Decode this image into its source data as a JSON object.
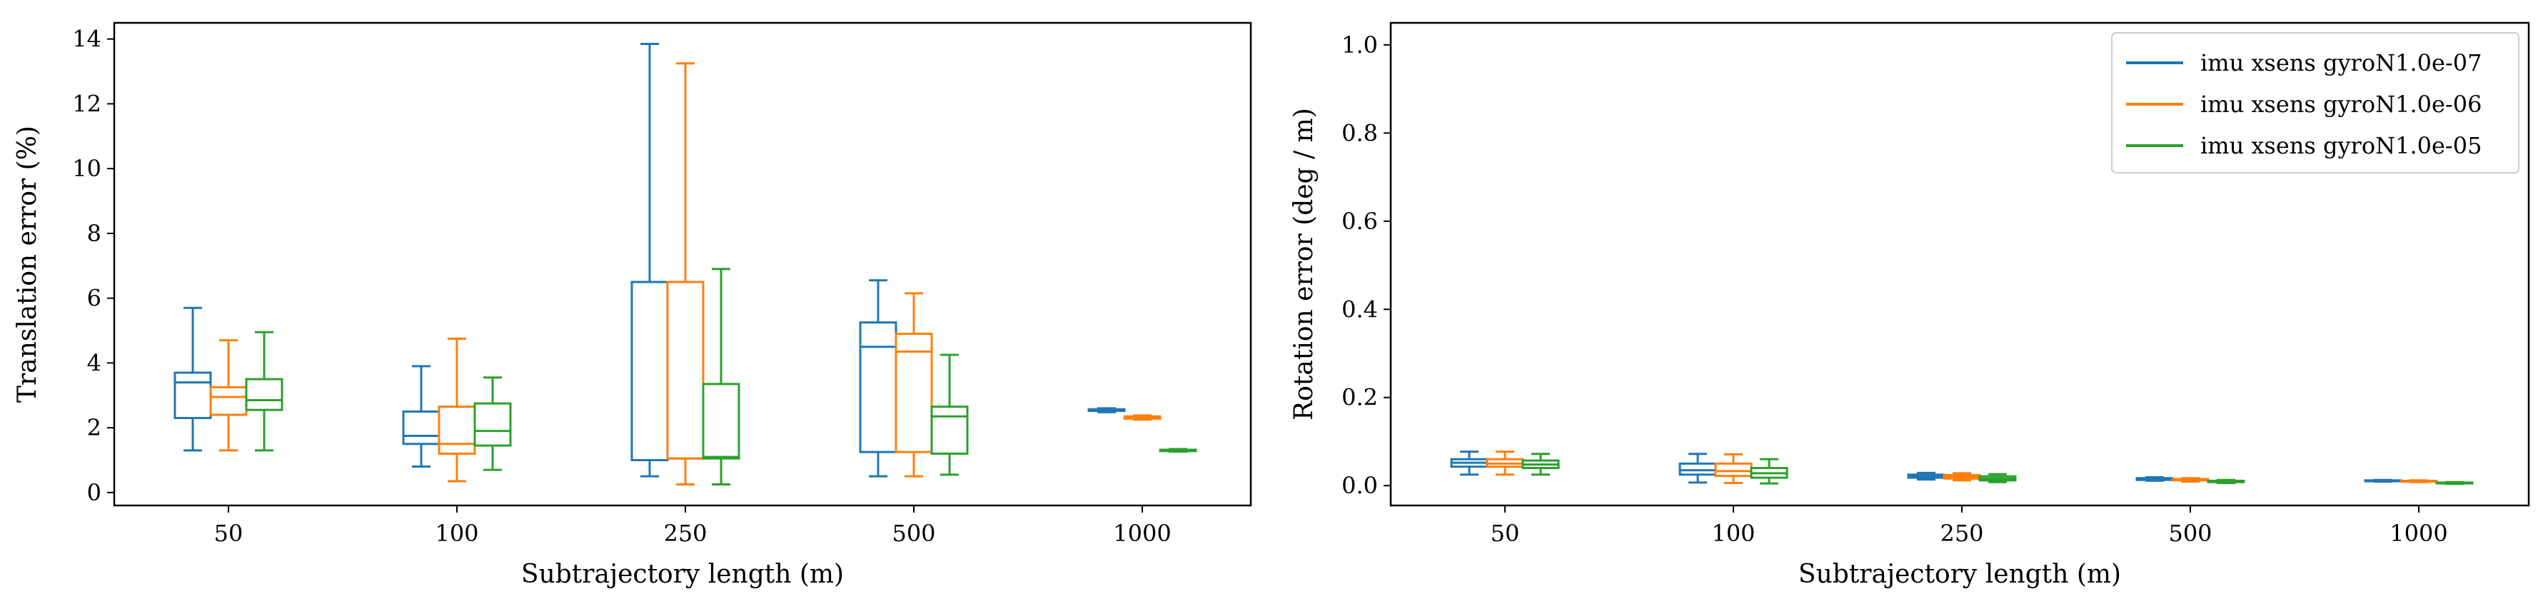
{
  "chart_data": [
    {
      "type": "box",
      "title": "",
      "xlabel": "Subtrajectory length (m)",
      "ylabel": "Translation error (%)",
      "categories": [
        "50",
        "100",
        "250",
        "500",
        "1000"
      ],
      "ylim": [
        -0.4,
        14.5
      ],
      "yticks": [
        0,
        2,
        4,
        6,
        8,
        10,
        12,
        14
      ],
      "ytick_labels": [
        "0",
        "2",
        "4",
        "6",
        "8",
        "10",
        "12",
        "14"
      ],
      "grid": false,
      "legend": false,
      "series": [
        {
          "name": "imu xsens gyroN1.0e-07",
          "color": "#1f77b4",
          "boxes": [
            {
              "min": 1.3,
              "q1": 2.3,
              "median": 3.4,
              "q3": 3.7,
              "max": 5.7
            },
            {
              "min": 0.8,
              "q1": 1.5,
              "median": 1.75,
              "q3": 2.5,
              "max": 3.9
            },
            {
              "min": 0.5,
              "q1": 1.0,
              "median": 6.5,
              "q3": 6.5,
              "max": 13.85
            },
            {
              "min": 0.5,
              "q1": 1.25,
              "median": 4.5,
              "q3": 5.25,
              "max": 6.55
            },
            {
              "min": 2.48,
              "q1": 2.52,
              "median": 2.55,
              "q3": 2.57,
              "max": 2.6
            }
          ]
        },
        {
          "name": "imu xsens gyroN1.0e-06",
          "color": "#ff7f0e",
          "boxes": [
            {
              "min": 1.3,
              "q1": 2.4,
              "median": 2.95,
              "q3": 3.25,
              "max": 4.7
            },
            {
              "min": 0.35,
              "q1": 1.2,
              "median": 1.5,
              "q3": 2.65,
              "max": 4.75
            },
            {
              "min": 0.25,
              "q1": 1.05,
              "median": 1.05,
              "q3": 6.5,
              "max": 13.25
            },
            {
              "min": 0.5,
              "q1": 1.25,
              "median": 4.35,
              "q3": 4.9,
              "max": 6.15
            },
            {
              "min": 2.25,
              "q1": 2.28,
              "median": 2.32,
              "q3": 2.35,
              "max": 2.38
            }
          ]
        },
        {
          "name": "imu xsens gyroN1.0e-05",
          "color": "#2ca02c",
          "boxes": [
            {
              "min": 1.3,
              "q1": 2.55,
              "median": 2.85,
              "q3": 3.5,
              "max": 4.95
            },
            {
              "min": 0.7,
              "q1": 1.45,
              "median": 1.9,
              "q3": 2.75,
              "max": 3.55
            },
            {
              "min": 0.25,
              "q1": 1.05,
              "median": 1.1,
              "q3": 3.35,
              "max": 6.9
            },
            {
              "min": 0.55,
              "q1": 1.2,
              "median": 2.35,
              "q3": 2.65,
              "max": 4.25
            },
            {
              "min": 1.26,
              "q1": 1.28,
              "median": 1.3,
              "q3": 1.32,
              "max": 1.34
            }
          ]
        }
      ]
    },
    {
      "type": "box",
      "title": "",
      "xlabel": "Subtrajectory length (m)",
      "ylabel": "Rotation error (deg / m)",
      "categories": [
        "50",
        "100",
        "250",
        "500",
        "1000"
      ],
      "ylim": [
        -0.045,
        1.05
      ],
      "yticks": [
        0.0,
        0.2,
        0.4,
        0.6,
        0.8,
        1.0
      ],
      "ytick_labels": [
        "0.0",
        "0.2",
        "0.4",
        "0.6",
        "0.8",
        "1.0"
      ],
      "grid": false,
      "legend": true,
      "legend_position": "upper right",
      "series": [
        {
          "name": "imu xsens gyroN1.0e-07",
          "color": "#1f77b4",
          "boxes": [
            {
              "min": 0.025,
              "q1": 0.043,
              "median": 0.052,
              "q3": 0.06,
              "max": 0.077
            },
            {
              "min": 0.007,
              "q1": 0.025,
              "median": 0.035,
              "q3": 0.05,
              "max": 0.072
            },
            {
              "min": 0.014,
              "q1": 0.018,
              "median": 0.021,
              "q3": 0.025,
              "max": 0.029
            },
            {
              "min": 0.011,
              "q1": 0.013,
              "median": 0.015,
              "q3": 0.017,
              "max": 0.019
            },
            {
              "min": 0.009,
              "q1": 0.01,
              "median": 0.011,
              "q3": 0.012,
              "max": 0.013
            }
          ]
        },
        {
          "name": "imu xsens gyroN1.0e-06",
          "color": "#ff7f0e",
          "boxes": [
            {
              "min": 0.025,
              "q1": 0.043,
              "median": 0.05,
              "q3": 0.06,
              "max": 0.077
            },
            {
              "min": 0.006,
              "q1": 0.022,
              "median": 0.033,
              "q3": 0.05,
              "max": 0.071
            },
            {
              "min": 0.012,
              "q1": 0.016,
              "median": 0.02,
              "q3": 0.024,
              "max": 0.028
            },
            {
              "min": 0.009,
              "q1": 0.012,
              "median": 0.013,
              "q3": 0.015,
              "max": 0.017
            },
            {
              "min": 0.008,
              "q1": 0.009,
              "median": 0.01,
              "q3": 0.011,
              "max": 0.012
            }
          ]
        },
        {
          "name": "imu xsens gyroN1.0e-05",
          "color": "#2ca02c",
          "boxes": [
            {
              "min": 0.025,
              "q1": 0.04,
              "median": 0.048,
              "q3": 0.057,
              "max": 0.072
            },
            {
              "min": 0.005,
              "q1": 0.018,
              "median": 0.028,
              "q3": 0.04,
              "max": 0.06
            },
            {
              "min": 0.008,
              "q1": 0.012,
              "median": 0.016,
              "q3": 0.021,
              "max": 0.026
            },
            {
              "min": 0.006,
              "q1": 0.008,
              "median": 0.009,
              "q3": 0.011,
              "max": 0.013
            },
            {
              "min": 0.004,
              "q1": 0.005,
              "median": 0.006,
              "q3": 0.007,
              "max": 0.008
            }
          ]
        }
      ]
    }
  ]
}
